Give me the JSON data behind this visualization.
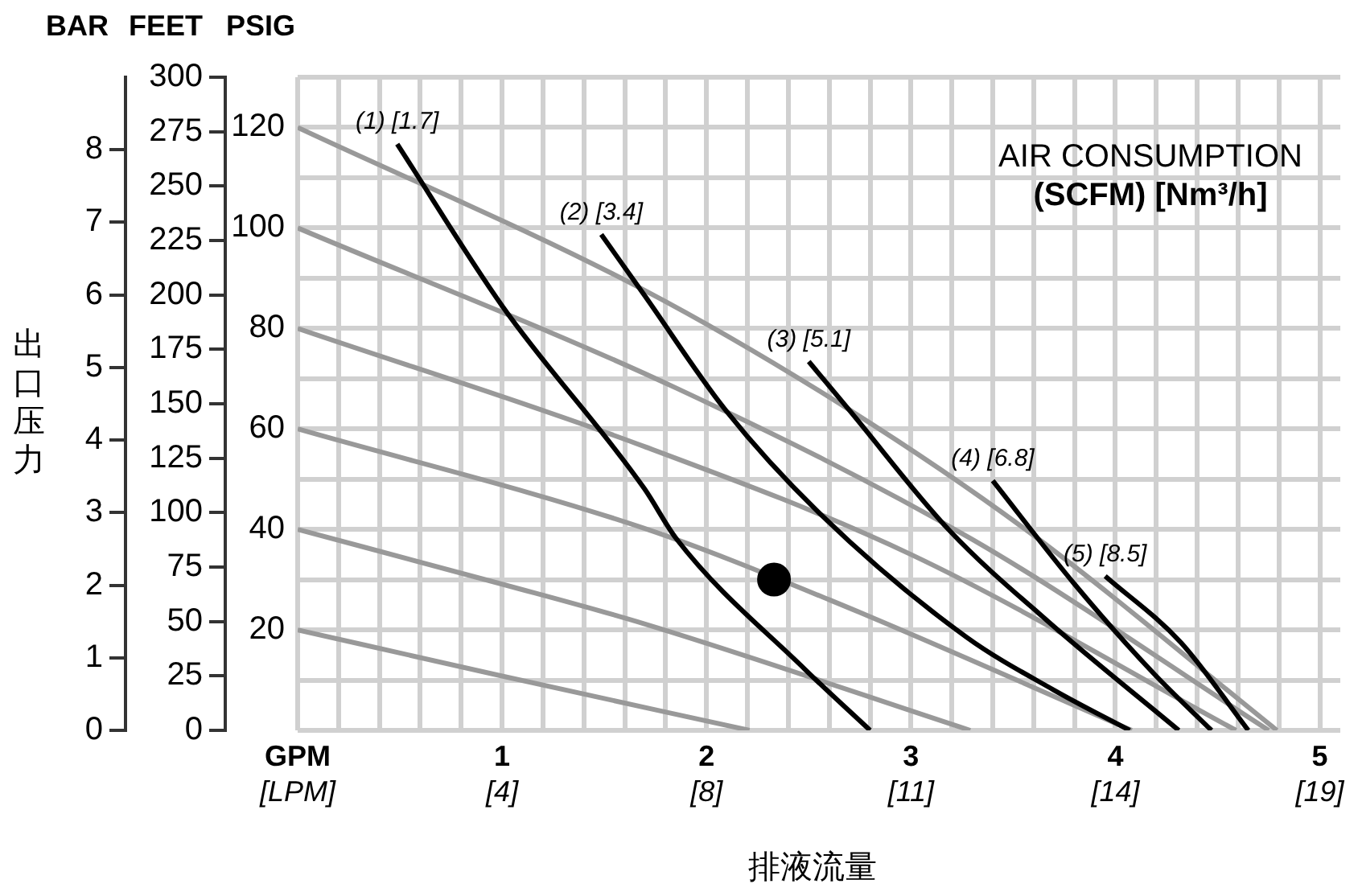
{
  "chart_data": {
    "type": "line",
    "xlabel": "排液流量",
    "ylabel": "PSIG",
    "y2label": "FEET",
    "y3label": "BAR",
    "annotations": [
      "出口压力",
      "AIR CONSUMPTION\n(SCFM) [Nm³/h]",
      "[LPM]",
      "[4]",
      "[8]",
      "[11]",
      "[14]",
      "[19]"
    ],
    "xlim": [
      0,
      5.1
    ],
    "xticks": [
      {
        "value": 0,
        "label": "GPM"
      },
      {
        "value": 0.2,
        "label": null
      },
      {
        "value": 0.4,
        "label": null
      },
      {
        "value": 0.6,
        "label": null
      },
      {
        "value": 0.8,
        "label": null
      },
      1,
      {
        "value": 1.2,
        "label": null
      },
      {
        "value": 1.4,
        "label": null
      },
      {
        "value": 1.6,
        "label": null
      },
      {
        "value": 1.8,
        "label": null
      },
      2,
      {
        "value": 2.2,
        "label": null
      },
      {
        "value": 2.4,
        "label": null
      },
      {
        "value": 2.6,
        "label": null
      },
      {
        "value": 2.8,
        "label": null
      },
      3,
      {
        "value": 3.2,
        "label": null
      },
      {
        "value": 3.4,
        "label": null
      },
      {
        "value": 3.6,
        "label": null
      },
      {
        "value": 3.8,
        "label": null
      },
      4,
      {
        "value": 4.2,
        "label": null
      },
      {
        "value": 4.4,
        "label": null
      },
      {
        "value": 4.6,
        "label": null
      },
      {
        "value": 4.8,
        "label": null
      },
      5
    ],
    "ylim": [
      0,
      130
    ],
    "yticks": [
      {
        "value": 0,
        "label": null
      },
      {
        "value": 10,
        "label": null
      },
      20,
      {
        "value": 30,
        "label": null
      },
      40,
      {
        "value": 50,
        "label": null
      },
      60,
      {
        "value": 70,
        "label": null
      },
      80,
      {
        "value": 90,
        "label": null
      },
      100,
      {
        "value": 110,
        "label": null
      },
      120,
      {
        "value": 130,
        "label": null
      }
    ],
    "y2lim": [
      0,
      300
    ],
    "y2ticks": [
      0,
      25,
      50,
      75,
      100,
      125,
      150,
      175,
      200,
      225,
      250,
      275,
      300
    ],
    "y3lim": [
      0,
      9
    ],
    "y3ticks": [
      0,
      1,
      2,
      3,
      4,
      5,
      6,
      7,
      8
    ],
    "grid": true,
    "marker": "none",
    "series": [
      {
        "type": "line",
        "color": "#999999",
        "x": [
          0,
          1,
          2.21
        ],
        "values": [
          20,
          10.8,
          0
        ]
      },
      {
        "type": "line",
        "color": "#999999",
        "x": [
          0,
          1,
          1.696,
          3.29
        ],
        "values": [
          40,
          29.1,
          21.2,
          0
        ]
      },
      {
        "type": "line",
        "color": "#999999",
        "x": [
          0,
          1.696,
          2.6,
          4.08
        ],
        "values": [
          60,
          40.2,
          26,
          0
        ]
      },
      {
        "type": "line",
        "color": "#999999",
        "x": [
          0,
          1.696,
          3.0,
          4.59
        ],
        "values": [
          80,
          56.5,
          35,
          0
        ]
      },
      {
        "type": "line",
        "color": "#999999",
        "x": [
          0,
          1.853,
          3.3,
          4.75
        ],
        "values": [
          100,
          68.1,
          38,
          0
        ]
      },
      {
        "type": "line",
        "color": "#999999",
        "x": [
          0,
          1.696,
          2.695,
          3.59,
          4.79
        ],
        "values": [
          120,
          87.6,
          63.9,
          39.1,
          0
        ]
      },
      {
        "type": "line",
        "name": "(1) [1.7]",
        "color": "#000000",
        "x": [
          0.487,
          1.0,
          1.696,
          1.853,
          2.48,
          2.8
        ],
        "values": [
          116.7,
          84.5,
          48.1,
          38.1,
          12.2,
          0
        ]
      },
      {
        "type": "line",
        "name": "(2) [3.4]",
        "color": "#000000",
        "x": [
          1.485,
          1.696,
          2.09,
          2.563,
          3.27,
          3.7,
          4.07
        ],
        "values": [
          98.7,
          86.6,
          63.9,
          42.8,
          18.6,
          8,
          0
        ]
      },
      {
        "type": "line",
        "name": "(3) [5.1]",
        "color": "#000000",
        "x": [
          2.5,
          2.695,
          3.19,
          3.67,
          4.31
        ],
        "values": [
          73.4,
          63.9,
          39.7,
          21.7,
          0
        ]
      },
      {
        "type": "line",
        "name": "(4) [6.8]",
        "color": "#000000",
        "x": [
          3.4,
          3.8,
          4.19,
          4.47
        ],
        "values": [
          49.7,
          29.1,
          11.2,
          0
        ]
      },
      {
        "type": "line",
        "name": "(5) [8.5]",
        "color": "#000000",
        "x": [
          3.95,
          4.32,
          4.65
        ],
        "values": [
          30.7,
          17.5,
          0
        ]
      },
      {
        "type": "scatter",
        "marker": "circle",
        "color": "#000000",
        "x": [
          2.33
        ],
        "values": [
          30
        ]
      }
    ]
  }
}
